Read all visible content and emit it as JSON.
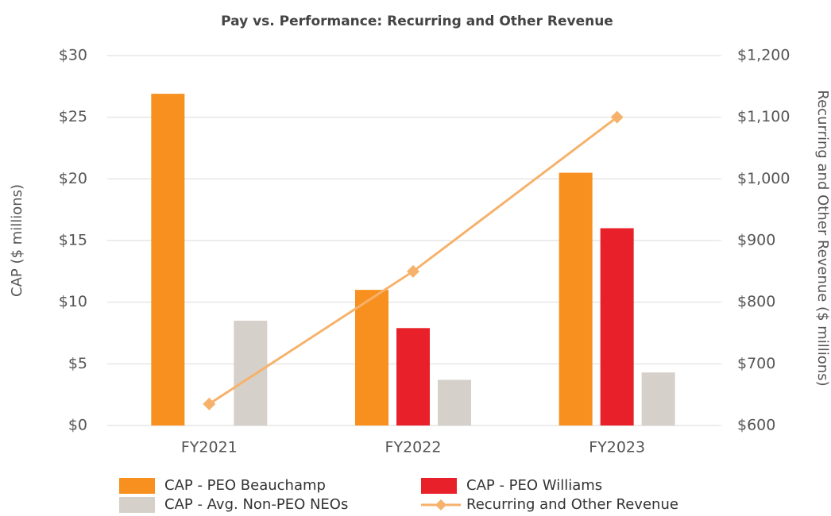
{
  "chart_data": {
    "type": "bar",
    "title": "Pay vs. Performance: Recurring and Other Revenue",
    "categories": [
      "FY2021",
      "FY2022",
      "FY2023"
    ],
    "series": [
      {
        "name": "CAP - PEO Beauchamp",
        "color": "#f7901e",
        "values": [
          26.9,
          11.0,
          20.5
        ]
      },
      {
        "name": "CAP - PEO Williams",
        "color": "#e8202a",
        "values": [
          null,
          7.9,
          16.0
        ]
      },
      {
        "name": "CAP - Avg. Non-PEO NEOs",
        "color": "#d5d0c9",
        "values": [
          8.5,
          3.7,
          4.3
        ]
      },
      {
        "name": "Recurring and Other Revenue",
        "color": "#f6b26b",
        "type": "line",
        "axis": "y2",
        "values": [
          635,
          850,
          1100
        ]
      }
    ],
    "y_label": "CAP ($ millions)",
    "y2_label": "Recurring and Other Revenue ($ millions)",
    "ylim": [
      0,
      30
    ],
    "yticks": [
      {
        "value": 0,
        "label": "$0"
      },
      {
        "value": 5,
        "label": "$5"
      },
      {
        "value": 10,
        "label": "$10"
      },
      {
        "value": 15,
        "label": "$15"
      },
      {
        "value": 20,
        "label": "$20"
      },
      {
        "value": 25,
        "label": "$25"
      },
      {
        "value": 30,
        "label": "$30"
      }
    ],
    "y2lim": [
      600,
      1200
    ],
    "y2ticks": [
      {
        "value": 600,
        "label": "$600"
      },
      {
        "value": 700,
        "label": "$700"
      },
      {
        "value": 800,
        "label": "$800"
      },
      {
        "value": 900,
        "label": "$900"
      },
      {
        "value": 1000,
        "label": "$1,000"
      },
      {
        "value": 1100,
        "label": "$1,100"
      },
      {
        "value": 1200,
        "label": "$1,200"
      }
    ],
    "grid": true
  }
}
